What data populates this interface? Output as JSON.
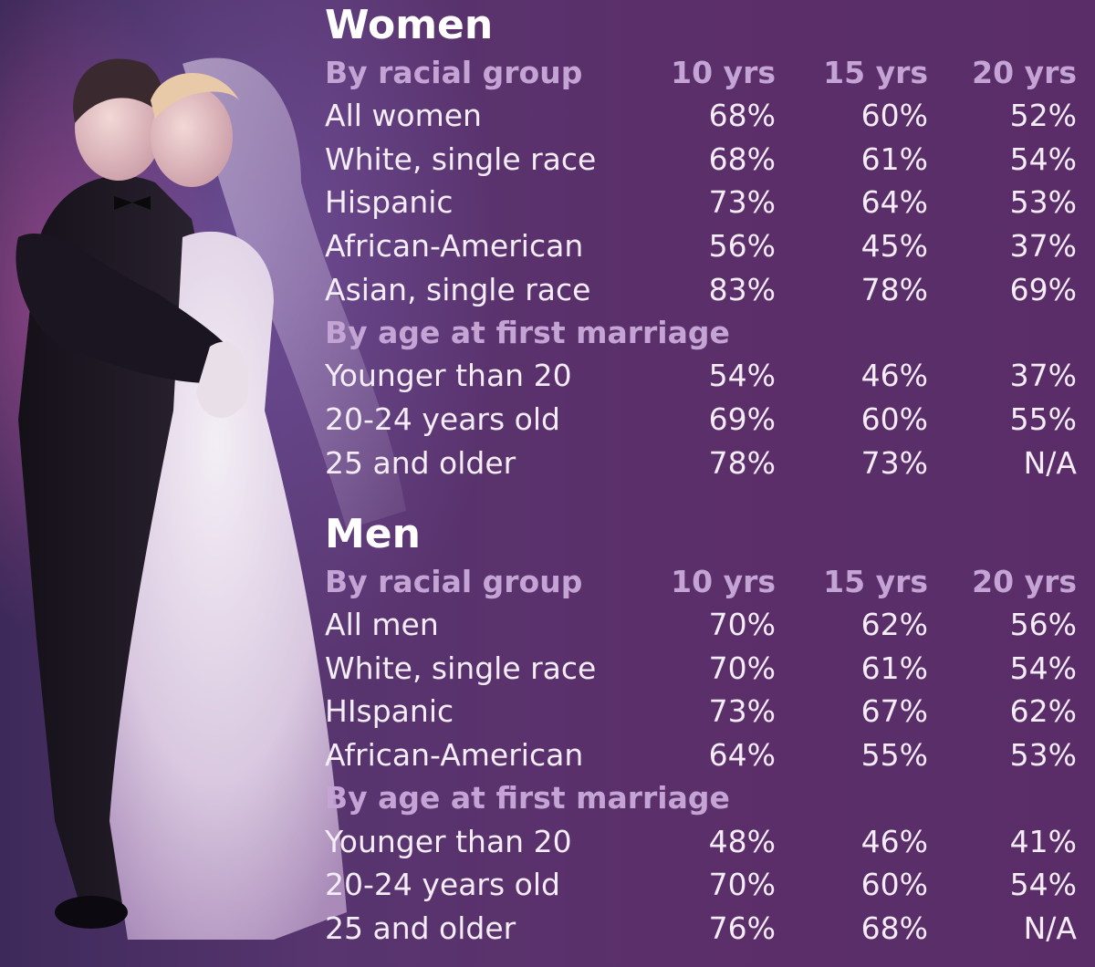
{
  "chart_data": {
    "type": "table",
    "columns": [
      "10 yrs",
      "15 yrs",
      "20 yrs"
    ],
    "sections": [
      {
        "title": "Women",
        "groups": [
          {
            "label": "By racial group",
            "rows": [
              {
                "label": "All women",
                "values": [
                  "68%",
                  "60%",
                  "52%"
                ]
              },
              {
                "label": "White, single race",
                "values": [
                  "68%",
                  "61%",
                  "54%"
                ]
              },
              {
                "label": "Hispanic",
                "values": [
                  "73%",
                  "64%",
                  "53%"
                ]
              },
              {
                "label": "African-American",
                "values": [
                  "56%",
                  "45%",
                  "37%"
                ]
              },
              {
                "label": "Asian, single race",
                "values": [
                  "83%",
                  "78%",
                  "69%"
                ]
              }
            ]
          },
          {
            "label": "By age at first marriage",
            "rows": [
              {
                "label": "Younger than 20",
                "values": [
                  "54%",
                  "46%",
                  "37%"
                ]
              },
              {
                "label": "20-24 years old",
                "values": [
                  "69%",
                  "60%",
                  "55%"
                ]
              },
              {
                "label": "25 and older",
                "values": [
                  "78%",
                  "73%",
                  "N/A"
                ]
              }
            ]
          }
        ]
      },
      {
        "title": "Men",
        "groups": [
          {
            "label": "By racial group",
            "rows": [
              {
                "label": "All men",
                "values": [
                  "70%",
                  "62%",
                  "56%"
                ]
              },
              {
                "label": "White, single race",
                "values": [
                  "70%",
                  "61%",
                  "54%"
                ]
              },
              {
                "label": "HIspanic",
                "values": [
                  "73%",
                  "67%",
                  "62%"
                ]
              },
              {
                "label": "African-American",
                "values": [
                  "64%",
                  "55%",
                  "53%"
                ]
              }
            ]
          },
          {
            "label": "By age at first marriage",
            "rows": [
              {
                "label": "Younger than 20",
                "values": [
                  "48%",
                  "46%",
                  "41%"
                ]
              },
              {
                "label": "20-24 years old",
                "values": [
                  "70%",
                  "60%",
                  "54%"
                ]
              },
              {
                "label": "25 and older",
                "values": [
                  "76%",
                  "68%",
                  "N/A"
                ]
              }
            ]
          }
        ]
      }
    ]
  },
  "colors": {
    "background": "#5a2d68",
    "header_text": "#ffffff",
    "subheader_text": "#c4a4d4",
    "row_text": "#f4ecf6"
  }
}
